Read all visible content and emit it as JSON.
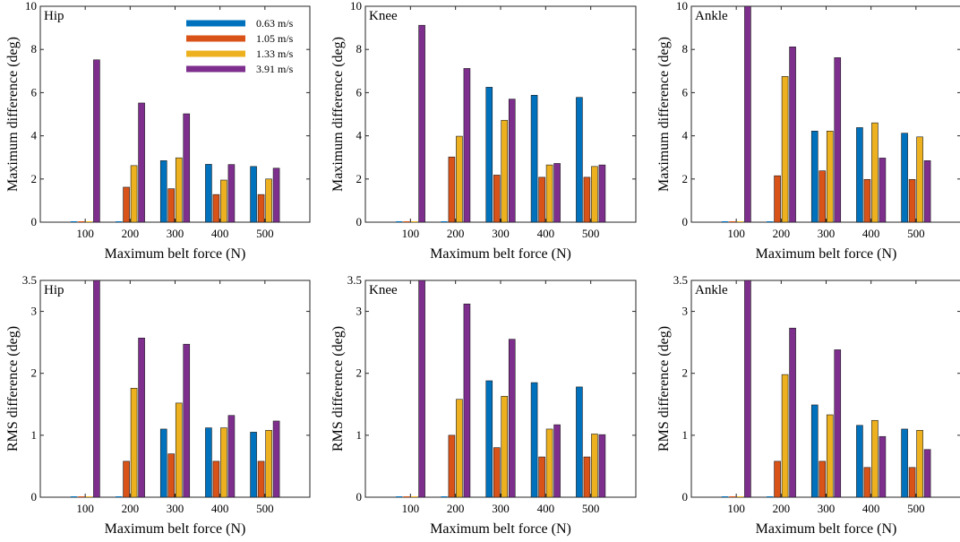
{
  "figure": {
    "legend": {
      "entries": [
        "0.63 m/s",
        "1.05 m/s",
        "1.33 m/s",
        "3.91 m/s"
      ]
    },
    "series_colors": [
      "#0072BD",
      "#D95319",
      "#EDB120",
      "#7E2F8E"
    ]
  },
  "chart_data": [
    {
      "type": "bar",
      "title": "Hip",
      "xlabel": "Maximum belt force (N)",
      "ylabel": "Maximum difference (deg)",
      "ylim": [
        0,
        10
      ],
      "yticks": [
        "0",
        "2",
        "4",
        "6",
        "8",
        "10"
      ],
      "categories": [
        "100",
        "200",
        "300",
        "400",
        "500"
      ],
      "series": [
        {
          "name": "0.63 m/s",
          "values": [
            0,
            0,
            2.85,
            2.68,
            2.58
          ]
        },
        {
          "name": "1.05 m/s",
          "values": [
            0,
            1.62,
            1.55,
            1.28,
            1.28
          ]
        },
        {
          "name": "1.33 m/s",
          "values": [
            0,
            2.62,
            2.98,
            1.95,
            2.0
          ]
        },
        {
          "name": "3.91 m/s",
          "values": [
            7.52,
            5.52,
            5.02,
            2.67,
            2.5
          ]
        }
      ]
    },
    {
      "type": "bar",
      "title": "Knee",
      "xlabel": "Maximum belt force (N)",
      "ylabel": "Maximum difference (deg)",
      "ylim": [
        0,
        10
      ],
      "yticks": [
        "0",
        "2",
        "4",
        "6",
        "8",
        "10"
      ],
      "categories": [
        "100",
        "200",
        "300",
        "400",
        "500"
      ],
      "series": [
        {
          "name": "0.63 m/s",
          "values": [
            0,
            0,
            6.25,
            5.88,
            5.78
          ]
        },
        {
          "name": "1.05 m/s",
          "values": [
            0,
            3.02,
            2.18,
            2.08,
            2.08
          ]
        },
        {
          "name": "1.33 m/s",
          "values": [
            0,
            3.98,
            4.72,
            2.65,
            2.58
          ]
        },
        {
          "name": "3.91 m/s",
          "values": [
            9.12,
            7.12,
            5.7,
            2.72,
            2.65
          ]
        }
      ]
    },
    {
      "type": "bar",
      "title": "Ankle",
      "xlabel": "Maximum belt force (N)",
      "ylabel": "Maximum difference (deg)",
      "ylim": [
        0,
        10
      ],
      "yticks": [
        "0",
        "2",
        "4",
        "6",
        "8",
        "10"
      ],
      "categories": [
        "100",
        "200",
        "300",
        "400",
        "500"
      ],
      "series": [
        {
          "name": "0.63 m/s",
          "values": [
            0,
            0,
            4.22,
            4.38,
            4.12
          ]
        },
        {
          "name": "1.05 m/s",
          "values": [
            0,
            2.15,
            2.38,
            1.98,
            1.98
          ]
        },
        {
          "name": "1.33 m/s",
          "values": [
            0,
            6.75,
            4.22,
            4.6,
            3.95
          ]
        },
        {
          "name": "3.91 m/s",
          "values": [
            10,
            8.12,
            7.62,
            2.97,
            2.85
          ]
        }
      ]
    },
    {
      "type": "bar",
      "title": "Hip",
      "xlabel": "Maximum belt force (N)",
      "ylabel": "RMS difference (deg)",
      "ylim": [
        0,
        3.5
      ],
      "yticks": [
        "0",
        "1",
        "2",
        "3",
        "3.5"
      ],
      "categories": [
        "100",
        "200",
        "300",
        "400",
        "500"
      ],
      "series": [
        {
          "name": "0.63 m/s",
          "values": [
            0,
            0,
            1.1,
            1.12,
            1.05
          ]
        },
        {
          "name": "1.05 m/s",
          "values": [
            0,
            0.58,
            0.7,
            0.58,
            0.58
          ]
        },
        {
          "name": "1.33 m/s",
          "values": [
            0,
            1.76,
            1.52,
            1.12,
            1.08
          ]
        },
        {
          "name": "3.91 m/s",
          "values": [
            3.5,
            2.57,
            2.47,
            1.32,
            1.23
          ]
        }
      ]
    },
    {
      "type": "bar",
      "title": "Knee",
      "xlabel": "Maximum belt force (N)",
      "ylabel": "RMS difference (deg)",
      "ylim": [
        0,
        3.5
      ],
      "yticks": [
        "0",
        "1",
        "2",
        "3",
        "3.5"
      ],
      "categories": [
        "100",
        "200",
        "300",
        "400",
        "500"
      ],
      "series": [
        {
          "name": "0.63 m/s",
          "values": [
            0,
            0,
            1.88,
            1.85,
            1.78
          ]
        },
        {
          "name": "1.05 m/s",
          "values": [
            0,
            1.0,
            0.8,
            0.65,
            0.65
          ]
        },
        {
          "name": "1.33 m/s",
          "values": [
            0,
            1.58,
            1.63,
            1.1,
            1.02
          ]
        },
        {
          "name": "3.91 m/s",
          "values": [
            3.5,
            3.12,
            2.55,
            1.17,
            1.01
          ]
        }
      ]
    },
    {
      "type": "bar",
      "title": "Ankle",
      "xlabel": "Maximum belt force (N)",
      "ylabel": "RMS difference (deg)",
      "ylim": [
        0,
        3.5
      ],
      "yticks": [
        "0",
        "1",
        "2",
        "3",
        "3.5"
      ],
      "categories": [
        "100",
        "200",
        "300",
        "400",
        "500"
      ],
      "series": [
        {
          "name": "0.63 m/s",
          "values": [
            0,
            0,
            1.49,
            1.16,
            1.1
          ]
        },
        {
          "name": "1.05 m/s",
          "values": [
            0,
            0.58,
            0.58,
            0.48,
            0.48
          ]
        },
        {
          "name": "1.33 m/s",
          "values": [
            0,
            1.98,
            1.33,
            1.24,
            1.08
          ]
        },
        {
          "name": "3.91 m/s",
          "values": [
            3.5,
            2.73,
            2.38,
            0.98,
            0.77
          ]
        }
      ]
    }
  ]
}
